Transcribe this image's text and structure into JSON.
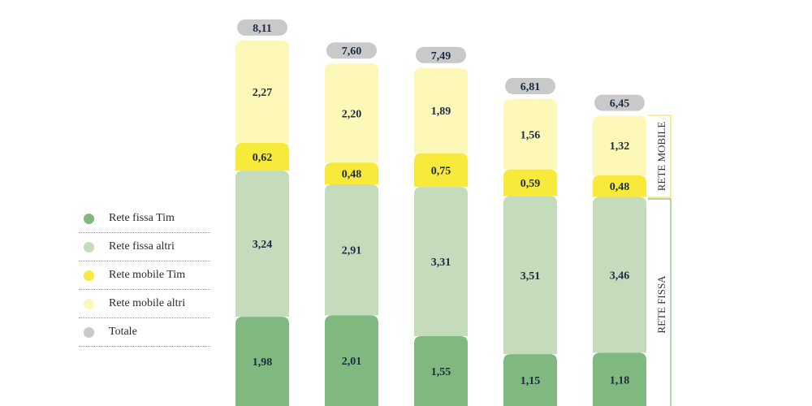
{
  "chart_data": {
    "type": "bar",
    "stacked": true,
    "categories": [
      "",
      "",
      "",
      "",
      ""
    ],
    "series": [
      {
        "name": "Rete fissa Tim",
        "color": "#7fb97f",
        "values": [
          1.98,
          2.01,
          1.55,
          1.15,
          1.18
        ]
      },
      {
        "name": "Rete fissa altri",
        "color": "#c4dcbc",
        "values": [
          3.24,
          2.91,
          3.31,
          3.51,
          3.46
        ]
      },
      {
        "name": "Rete mobile Tim",
        "color": "#f7ea3a",
        "values": [
          0.62,
          0.48,
          0.75,
          0.59,
          0.48
        ]
      },
      {
        "name": "Rete mobile altri",
        "color": "#fdf8b8",
        "values": [
          2.27,
          2.2,
          1.89,
          1.56,
          1.32
        ]
      }
    ],
    "totals": {
      "name": "Totale",
      "color": "#c9c9c9",
      "values": [
        8.11,
        7.6,
        7.49,
        6.81,
        6.45
      ]
    },
    "value_labels": {
      "Rete fissa Tim": [
        "1,98",
        "2,01",
        "1,55",
        "1,15",
        "1,18"
      ],
      "Rete fissa altri": [
        "3,24",
        "2,91",
        "3,31",
        "3,51",
        "3,46"
      ],
      "Rete mobile Tim": [
        "0,62",
        "0,48",
        "0,75",
        "0,59",
        "0,48"
      ],
      "Rete mobile altri": [
        "2,27",
        "2,20",
        "1,89",
        "1,56",
        "1,32"
      ],
      "Totale": [
        "8,11",
        "7,60",
        "7,49",
        "6,81",
        "6,45"
      ]
    },
    "group_labels": {
      "mobile": "RETE MOBILE",
      "fixed": "RETE FISSA"
    },
    "legend_position": "left",
    "grid": false
  },
  "legend": {
    "items": [
      {
        "label": "Rete fissa Tim",
        "color": "#7fb97f"
      },
      {
        "label": "Rete fissa altri",
        "color": "#c4dcbc"
      },
      {
        "label": "Rete mobile Tim",
        "color": "#f7ea3a"
      },
      {
        "label": "Rete mobile altri",
        "color": "#fdf8b8"
      },
      {
        "label": "Totale",
        "color": "#c9c9c9"
      }
    ]
  }
}
